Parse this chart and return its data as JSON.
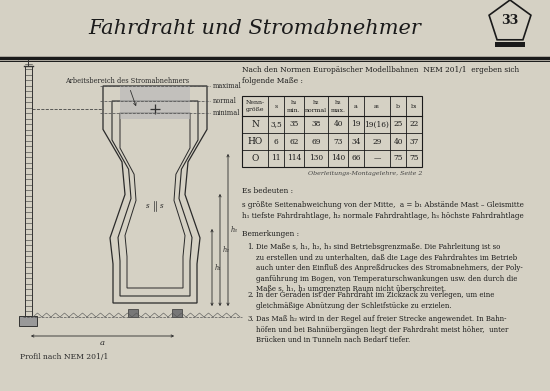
{
  "title": "Fahrdraht und Stromabnehmer",
  "page_number": "33",
  "bg_color": "#d5d1c4",
  "intro_text": "Nach den Normen Europäischer Modellbahnen  NEM 201/1  ergeben sich\nfolgende Maße :",
  "table_headers_line1": [
    "Nenn-",
    "s",
    "h₁",
    "h₂",
    "h₃",
    "a",
    "a₁",
    "b",
    "b₁"
  ],
  "table_headers_line2": [
    "größe",
    "",
    "min.",
    "normal",
    "max.",
    "",
    "",
    "",
    ""
  ],
  "table_rows": [
    [
      "N",
      "3,5",
      "35",
      "38",
      "40",
      "19",
      "19(16)",
      "25",
      "22"
    ],
    [
      "HO",
      "6",
      "62",
      "69",
      "73",
      "34",
      "29",
      "40",
      "37"
    ],
    [
      "O",
      "11",
      "114",
      "130",
      "140",
      "66",
      "—",
      "75",
      "75"
    ]
  ],
  "table_note": "Oberleitungs-Montagelehre, Seite 2",
  "es_bedeuten_text": "Es bedeuten :",
  "legend_line1": "s größte Seitenabweichung von der Mitte,  a = b₁ Abstände Mast – Gleismitte",
  "legend_line2": "h₁ tiefste Fahrdrahtlage, h₂ normale Fahrdrahtlage, h₃ höchste Fahrdrahtlage",
  "bemerkungen_title": "Bemerkungen :",
  "remark1": "Die Maße s, h₁, h₂, h₃ sind Betriebsgrenzmaße. Die Fahrleitung ist so\nzu erstellen und zu unterhalten, daß die Lage des Fahrdrahtes im Betrieb\nauch unter den Einfluß des Anpreßdruckes des Stromabnehmers, der Poly-\nganführung im Bogen, von Temperaturschwankungen usw. den durch die\nMaße s, h₁, h₃ umgrenzten Raum nicht überschreitet.",
  "remark2": "In der Geraden ist der Fahrdraht im Zickzack zu verlegen, um eine\ngleichmäßige Abnützung der Schleifstücke zu erzielen.",
  "remark3": "Das Maß h₂ wird in der Regel auf freier Strecke angewendet. In Bahn-\nhöfen und bei Bahnübergängen liegt der Fahrdraht meist höher,  unter\nBrücken und in Tunneln nach Bedarf tiefer.",
  "label_arbeitsbereich": "Arbeitsbereich des Stromabnehmers",
  "label_maximal": "maximal",
  "label_normal": "normal",
  "label_minimal": "minimal",
  "label_profil": "Profil nach NEM 201/1",
  "label_a": "a",
  "label_h1": "h₁",
  "label_h2": "h₂",
  "label_h3": "h₃",
  "label_s": "s"
}
